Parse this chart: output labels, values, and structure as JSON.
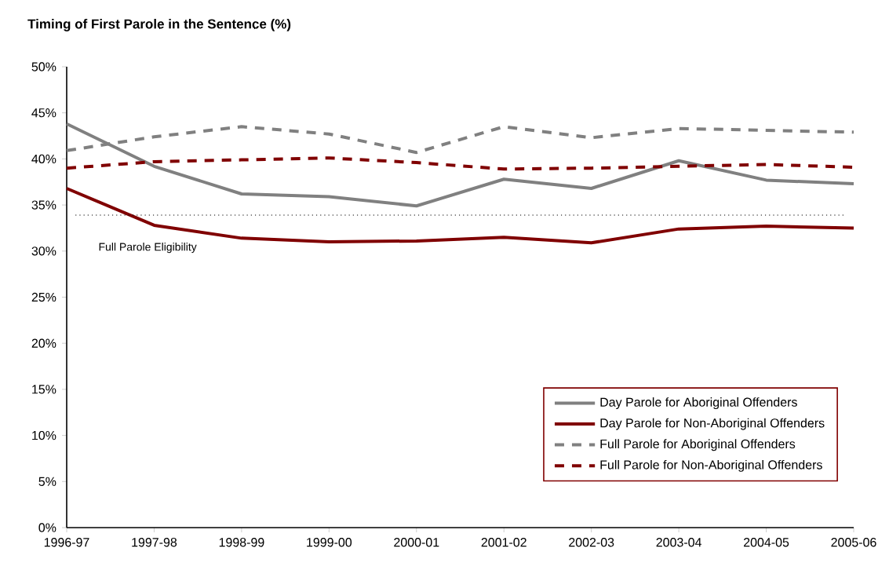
{
  "chart_data": {
    "type": "line",
    "title": "Timing of First Parole in the Sentence (%)",
    "categories": [
      "1996-97",
      "1997-98",
      "1998-99",
      "1999-00",
      "2000-01",
      "2001-02",
      "2002-03",
      "2003-04",
      "2004-05",
      "2005-06"
    ],
    "series": [
      {
        "name": "Day Parole for Aboriginal Offenders",
        "color": "#808080",
        "line_style": "solid",
        "values": [
          43.8,
          39.2,
          36.2,
          35.9,
          34.9,
          37.8,
          36.8,
          39.8,
          37.7,
          37.3
        ]
      },
      {
        "name": "Day Parole for Non-Aboriginal Offenders",
        "color": "#800000",
        "line_style": "solid",
        "values": [
          36.8,
          32.8,
          31.4,
          31.0,
          31.1,
          31.5,
          30.9,
          32.4,
          32.7,
          32.5
        ]
      },
      {
        "name": "Full Parole for Aboriginal Offenders",
        "color": "#808080",
        "line_style": "dashed",
        "values": [
          40.9,
          42.4,
          43.5,
          42.7,
          40.7,
          43.5,
          42.3,
          43.3,
          43.1,
          42.9
        ]
      },
      {
        "name": "Full Parole for Non-Aboriginal Offenders",
        "color": "#800000",
        "line_style": "dashed",
        "values": [
          39.0,
          39.7,
          39.9,
          40.1,
          39.6,
          38.9,
          39.0,
          39.2,
          39.4,
          39.1
        ]
      }
    ],
    "ylim": [
      0,
      50
    ],
    "yticks": [
      {
        "value": 0,
        "label": "0%"
      },
      {
        "value": 5,
        "label": "5%"
      },
      {
        "value": 10,
        "label": "10%"
      },
      {
        "value": 15,
        "label": "15%"
      },
      {
        "value": 20,
        "label": "20%"
      },
      {
        "value": 25,
        "label": "25%"
      },
      {
        "value": 30,
        "label": "30%"
      },
      {
        "value": 35,
        "label": "35%"
      },
      {
        "value": 40,
        "label": "40%"
      },
      {
        "value": 45,
        "label": "45%"
      },
      {
        "value": 50,
        "label": "50%"
      }
    ],
    "ref_lines": [
      {
        "axis": "y",
        "value": 33.9,
        "label": "Full Parole Eligibility",
        "color": "#000000",
        "line_style": "dotted"
      }
    ],
    "legend": "bottom right",
    "grid": false,
    "marker": "none"
  }
}
